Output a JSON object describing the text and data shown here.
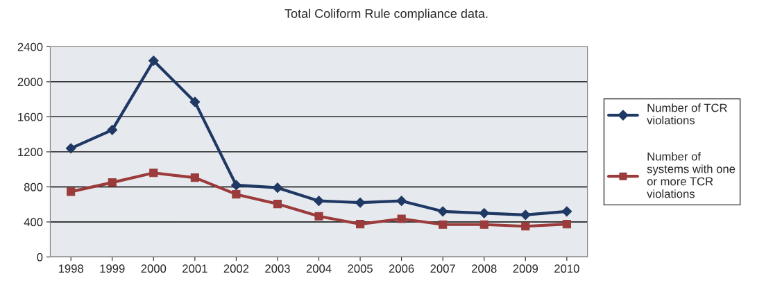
{
  "chart_data": {
    "type": "line",
    "title": "Total Coliform Rule compliance data.",
    "categories": [
      "1998",
      "1999",
      "2000",
      "2001",
      "2002",
      "2003",
      "2004",
      "2005",
      "2006",
      "2007",
      "2008",
      "2009",
      "2010"
    ],
    "series": [
      {
        "name": "Number of TCR violations",
        "color": "#1f3864",
        "marker": "diamond",
        "values": [
          1240,
          1450,
          2240,
          1770,
          820,
          790,
          640,
          620,
          640,
          520,
          500,
          480,
          520
        ]
      },
      {
        "name": "Number of systems with one or more TCR violations",
        "color": "#9b3b3b",
        "marker": "square",
        "values": [
          745,
          850,
          960,
          905,
          715,
          605,
          465,
          375,
          435,
          370,
          370,
          350,
          375
        ]
      }
    ],
    "ylim": [
      0,
      2400
    ],
    "yticks": [
      0,
      400,
      800,
      1200,
      1600,
      2000,
      2400
    ],
    "grid": "y",
    "legend": "right",
    "line_style": "solid"
  }
}
